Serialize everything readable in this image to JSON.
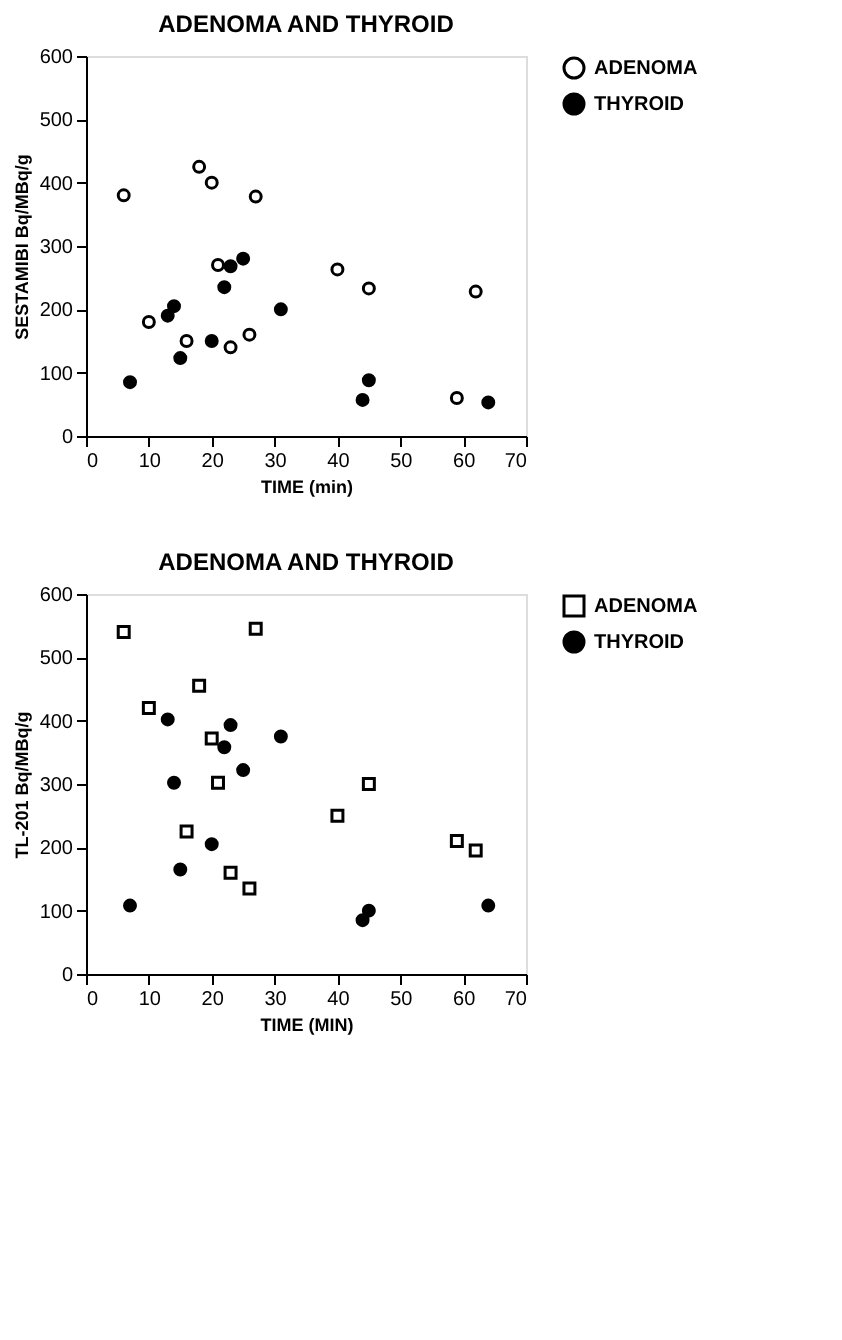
{
  "chart_data": [
    {
      "type": "scatter",
      "title": "ADENOMA AND THYROID",
      "xlabel": "TIME (min)",
      "ylabel": "SESTAMIBI   Bq/MBq/g",
      "xlim": [
        0,
        70
      ],
      "xticks": [
        0,
        10,
        20,
        30,
        40,
        50,
        60,
        70
      ],
      "ylim": [
        0,
        600
      ],
      "yticks": [
        0,
        100,
        200,
        300,
        400,
        500,
        600
      ],
      "legend": "top right",
      "grid": false,
      "series": [
        {
          "name": "ADENOMA",
          "color": "#000000",
          "marker": "circle",
          "x": [
            6,
            10,
            16,
            18,
            20,
            21,
            23,
            26,
            27,
            40,
            45,
            59,
            62
          ],
          "values": [
            380,
            180,
            150,
            425,
            400,
            270,
            140,
            160,
            378,
            263,
            233,
            60,
            228
          ]
        },
        {
          "name": "THYROID",
          "color": "#000000",
          "marker": "circle",
          "x": [
            7,
            13,
            14,
            15,
            20,
            22,
            23,
            25,
            31,
            44,
            45,
            64
          ],
          "values": [
            85,
            190,
            205,
            123,
            150,
            235,
            268,
            280,
            200,
            57,
            88,
            53
          ]
        }
      ]
    },
    {
      "type": "scatter",
      "title": "ADENOMA AND THYROID",
      "xlabel": "TIME (MIN)",
      "ylabel": "TL-201   Bq/MBq/g",
      "xlim": [
        0,
        70
      ],
      "xticks": [
        0,
        10,
        20,
        30,
        40,
        50,
        60,
        70
      ],
      "ylim": [
        0,
        600
      ],
      "yticks": [
        0,
        100,
        200,
        300,
        400,
        500,
        600
      ],
      "legend": "top right",
      "grid": false,
      "series": [
        {
          "name": "ADENOMA",
          "color": "#000000",
          "marker": "square",
          "x": [
            6,
            10,
            16,
            18,
            20,
            21,
            23,
            26,
            27,
            40,
            45,
            59,
            62
          ],
          "values": [
            540,
            420,
            225,
            455,
            372,
            302,
            160,
            135,
            545,
            250,
            300,
            210,
            195
          ]
        },
        {
          "name": "THYROID",
          "color": "#000000",
          "marker": "circle",
          "x": [
            7,
            13,
            14,
            15,
            20,
            22,
            23,
            25,
            31,
            44,
            45,
            64
          ],
          "values": [
            108,
            402,
            302,
            165,
            205,
            358,
            393,
            322,
            375,
            85,
            100,
            108
          ]
        }
      ]
    }
  ]
}
